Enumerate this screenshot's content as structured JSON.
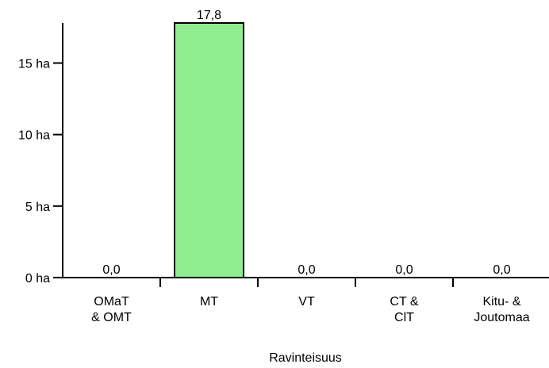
{
  "chart_data": {
    "type": "bar",
    "categories": [
      [
        "OMaT",
        "& OMT"
      ],
      [
        "MT"
      ],
      [
        "VT"
      ],
      [
        "CT &",
        "ClT"
      ],
      [
        "Kitu- &",
        "Joutomaa"
      ]
    ],
    "values": [
      0.0,
      17.8,
      0.0,
      0.0,
      0.0
    ],
    "value_labels": [
      "0,0",
      "17,8",
      "0,0",
      "0,0",
      "0,0"
    ],
    "y_ticks": [
      {
        "value": 0,
        "label": "0 ha"
      },
      {
        "value": 5,
        "label": "5 ha"
      },
      {
        "value": 10,
        "label": "10 ha"
      },
      {
        "value": 15,
        "label": "15 ha"
      }
    ],
    "ylim": [
      0,
      17.8
    ],
    "xlabel": "Ravinteisuus",
    "ylabel": "",
    "title": "",
    "grid": false,
    "colors": {
      "bar_fill": "#90ee90",
      "bar_stroke": "#000000",
      "axis": "#000000"
    }
  }
}
